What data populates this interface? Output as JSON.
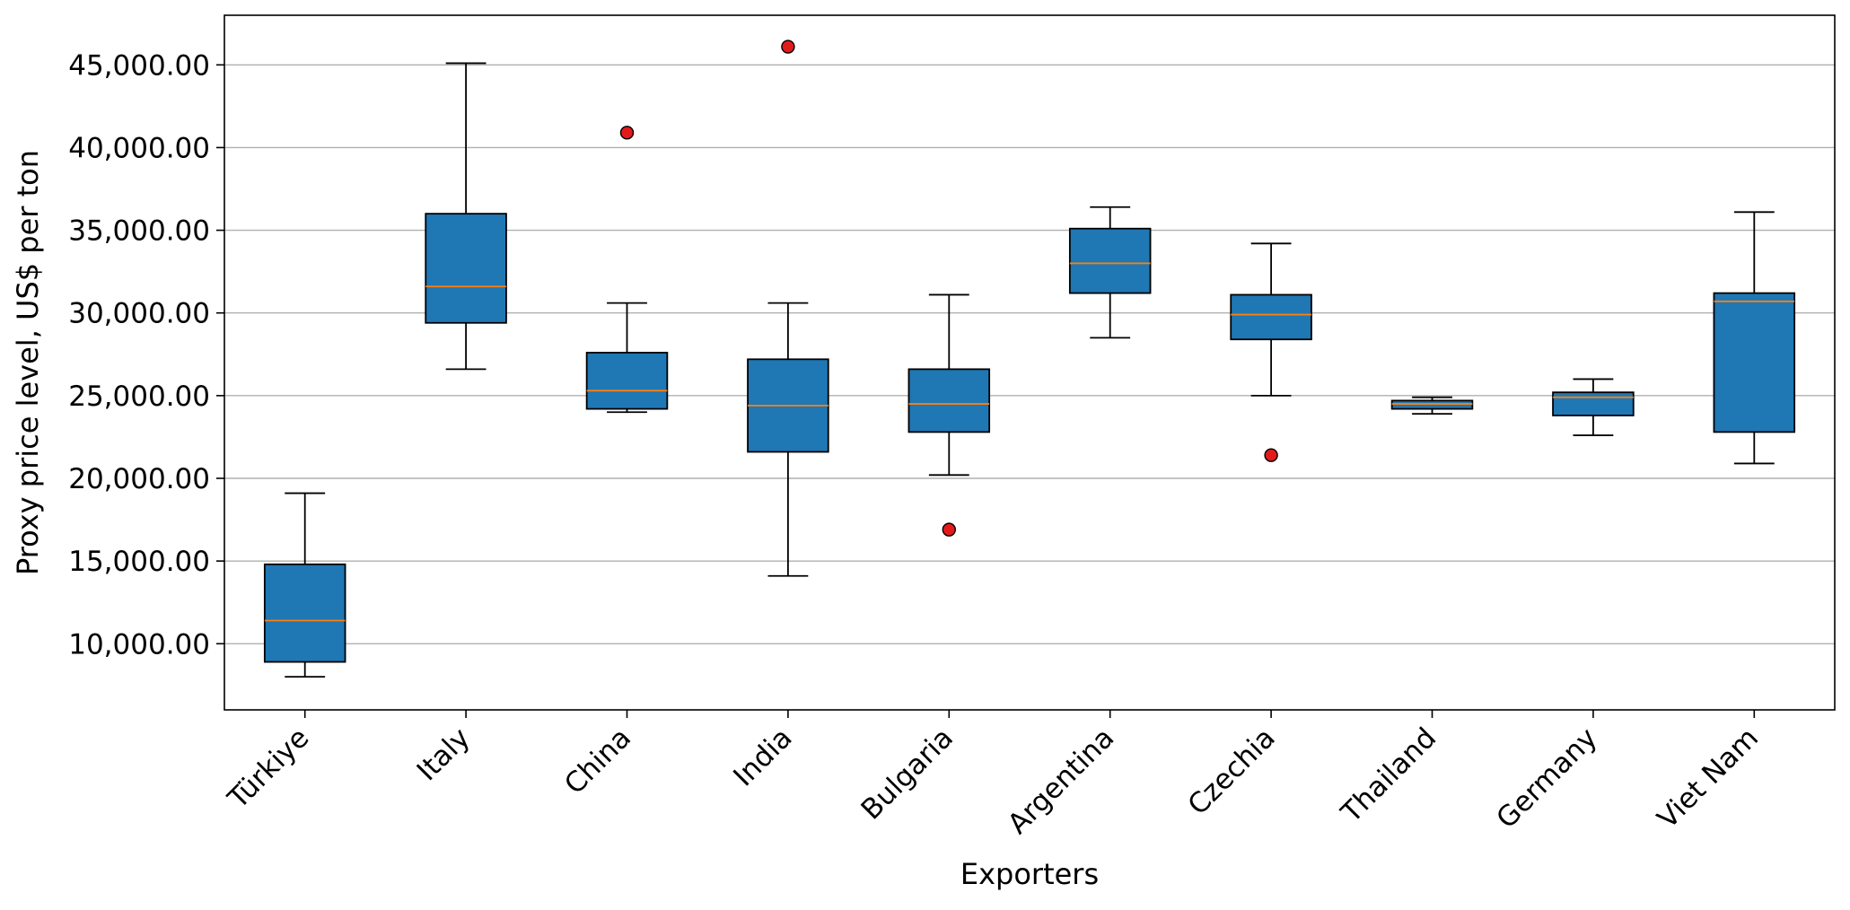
{
  "chart_data": {
    "type": "boxplot",
    "title": "",
    "xlabel": "Exporters",
    "ylabel": "Proxy price level, US$ per ton",
    "ylim": [
      6000,
      48000
    ],
    "yticks": [
      10000,
      15000,
      20000,
      25000,
      30000,
      35000,
      40000,
      45000
    ],
    "ytick_labels": [
      "10,000.00",
      "15,000.00",
      "20,000.00",
      "25,000.00",
      "30,000.00",
      "35,000.00",
      "40,000.00",
      "45,000.00"
    ],
    "grid": "horizontal",
    "categories": [
      "Türkiye",
      "Italy",
      "China",
      "India",
      "Bulgaria",
      "Argentina",
      "Czechia",
      "Thailand",
      "Germany",
      "Viet Nam"
    ],
    "boxes": [
      {
        "whisker_low": 8000,
        "q1": 8900,
        "median": 11400,
        "q3": 14800,
        "whisker_high": 19100,
        "outliers": []
      },
      {
        "whisker_low": 26600,
        "q1": 29400,
        "median": 31600,
        "q3": 36000,
        "whisker_high": 45100,
        "outliers": []
      },
      {
        "whisker_low": 24000,
        "q1": 24200,
        "median": 25300,
        "q3": 27600,
        "whisker_high": 30600,
        "outliers": [
          40900
        ]
      },
      {
        "whisker_low": 14100,
        "q1": 21600,
        "median": 24400,
        "q3": 27200,
        "whisker_high": 30600,
        "outliers": [
          46100
        ]
      },
      {
        "whisker_low": 20200,
        "q1": 22800,
        "median": 24500,
        "q3": 26600,
        "whisker_high": 31100,
        "outliers": [
          16900
        ]
      },
      {
        "whisker_low": 28500,
        "q1": 31200,
        "median": 33000,
        "q3": 35100,
        "whisker_high": 36400,
        "outliers": []
      },
      {
        "whisker_low": 25000,
        "q1": 28400,
        "median": 29900,
        "q3": 31100,
        "whisker_high": 34200,
        "outliers": [
          21400
        ]
      },
      {
        "whisker_low": 23900,
        "q1": 24200,
        "median": 24500,
        "q3": 24700,
        "whisker_high": 24900,
        "outliers": []
      },
      {
        "whisker_low": 22600,
        "q1": 23800,
        "median": 24900,
        "q3": 25200,
        "whisker_high": 26000,
        "outliers": []
      },
      {
        "whisker_low": 20900,
        "q1": 22800,
        "median": 30700,
        "q3": 31200,
        "whisker_high": 36100,
        "outliers": []
      }
    ],
    "colors": {
      "box_fill": "#1f77b4",
      "box_edge": "#000000",
      "median": "#ff7f0e",
      "outlier_fill": "#e31a1c",
      "grid": "#b0b0b0"
    }
  }
}
